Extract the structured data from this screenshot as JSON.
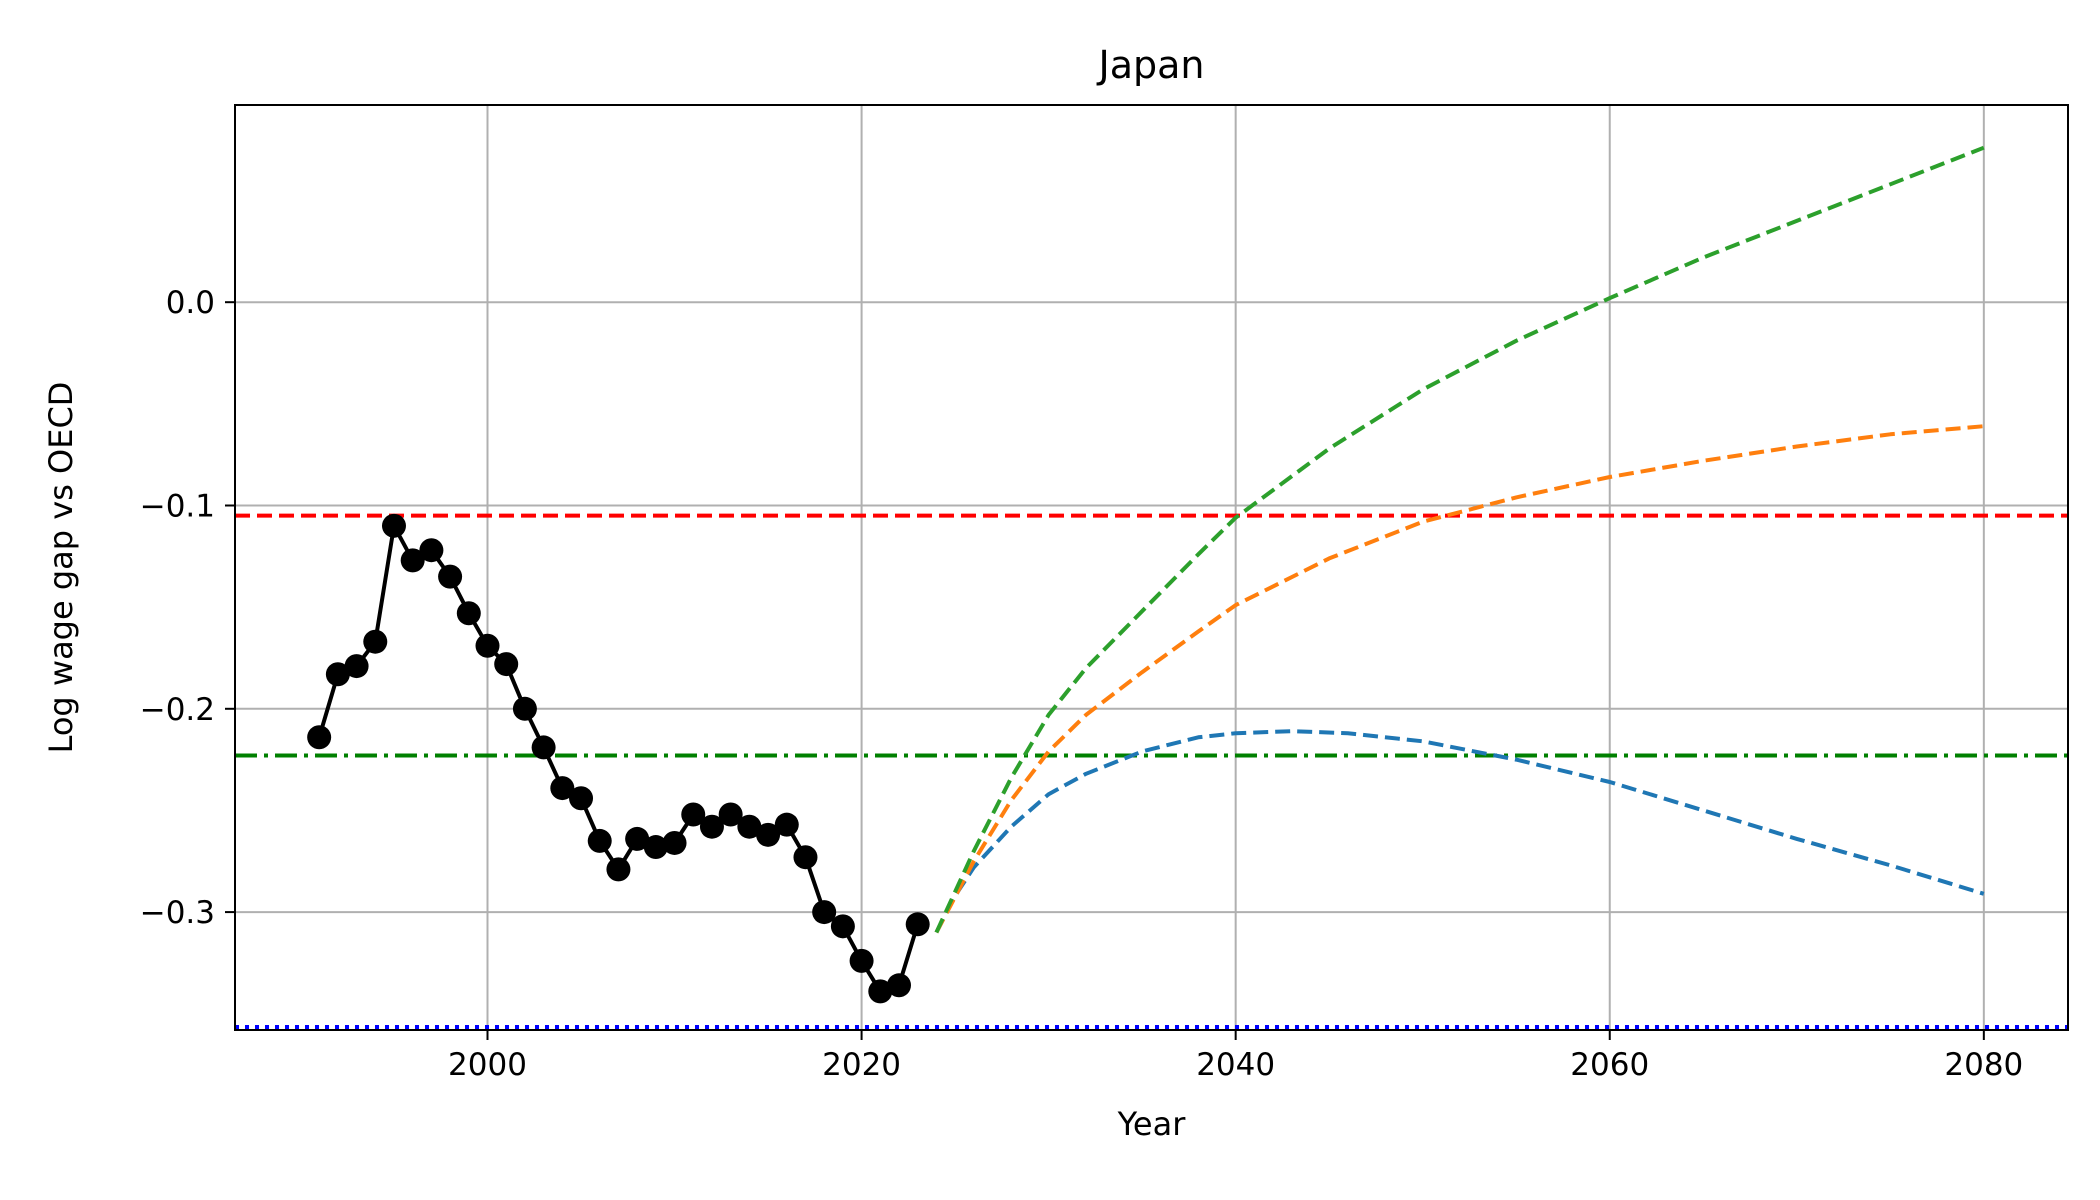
{
  "chart_data": {
    "type": "line",
    "title": "Japan",
    "xlabel": "Year",
    "ylabel": "Log wage gap vs OECD",
    "xlim": [
      1986.5,
      2084.5
    ],
    "ylim": [
      -0.358,
      0.097
    ],
    "grid": true,
    "xticks": [
      {
        "value": 2000,
        "label": "2000"
      },
      {
        "value": 2020,
        "label": "2020"
      },
      {
        "value": 2040,
        "label": "2040"
      },
      {
        "value": 2060,
        "label": "2060"
      },
      {
        "value": 2080,
        "label": "2080"
      }
    ],
    "yticks": [
      {
        "value": 0.0,
        "label": "0.0"
      },
      {
        "value": -0.1,
        "label": "−0.1"
      },
      {
        "value": -0.2,
        "label": "−0.2"
      },
      {
        "value": -0.3,
        "label": "−0.3"
      }
    ],
    "reference_lines": [
      {
        "y": -0.105,
        "color": "#ff0000",
        "style": "dashed"
      },
      {
        "y": -0.223,
        "color": "#008000",
        "style": "dashdot"
      },
      {
        "y": -0.357,
        "color": "#0000ff",
        "style": "dotted"
      }
    ],
    "series": [
      {
        "color": "#000000",
        "style": "solid",
        "marker": "circle",
        "x": [
          1991,
          1992,
          1993,
          1994,
          1995,
          1996,
          1997,
          1998,
          1999,
          2000,
          2001,
          2002,
          2003,
          2004,
          2005,
          2006,
          2007,
          2008,
          2009,
          2010,
          2011,
          2012,
          2013,
          2014,
          2015,
          2016,
          2017,
          2018,
          2019,
          2020,
          2021,
          2022,
          2023
        ],
        "y": [
          -0.214,
          -0.183,
          -0.179,
          -0.167,
          -0.11,
          -0.127,
          -0.122,
          -0.135,
          -0.153,
          -0.169,
          -0.178,
          -0.2,
          -0.219,
          -0.239,
          -0.244,
          -0.265,
          -0.279,
          -0.264,
          -0.268,
          -0.266,
          -0.252,
          -0.258,
          -0.252,
          -0.258,
          -0.262,
          -0.257,
          -0.273,
          -0.3,
          -0.307,
          -0.324,
          -0.339,
          -0.336,
          -0.306
        ]
      },
      {
        "color": "#1f77b4",
        "style": "dashed",
        "x": [
          2024,
          2025,
          2026,
          2028,
          2030,
          2032,
          2035,
          2038,
          2040,
          2043,
          2046,
          2050,
          2055,
          2060,
          2065,
          2070,
          2075,
          2080
        ],
        "y": [
          -0.31,
          -0.292,
          -0.278,
          -0.258,
          -0.242,
          -0.232,
          -0.221,
          -0.214,
          -0.212,
          -0.211,
          -0.212,
          -0.216,
          -0.225,
          -0.236,
          -0.25,
          -0.264,
          -0.277,
          -0.291
        ]
      },
      {
        "color": "#ff7f0e",
        "style": "dashed",
        "x": [
          2024,
          2026,
          2028,
          2030,
          2032,
          2035,
          2038,
          2040,
          2045,
          2050,
          2055,
          2060,
          2065,
          2070,
          2075,
          2080
        ],
        "y": [
          -0.31,
          -0.275,
          -0.245,
          -0.221,
          -0.203,
          -0.182,
          -0.162,
          -0.149,
          -0.126,
          -0.108,
          -0.096,
          -0.086,
          -0.078,
          -0.071,
          -0.065,
          -0.061
        ]
      },
      {
        "color": "#2ca02c",
        "style": "dashed",
        "x": [
          2024,
          2026,
          2028,
          2030,
          2032,
          2035,
          2038,
          2040,
          2045,
          2050,
          2055,
          2060,
          2065,
          2070,
          2075,
          2080
        ],
        "y": [
          -0.31,
          -0.27,
          -0.234,
          -0.203,
          -0.18,
          -0.152,
          -0.124,
          -0.106,
          -0.072,
          -0.043,
          -0.019,
          0.002,
          0.022,
          0.04,
          0.058,
          0.076
        ]
      }
    ]
  }
}
